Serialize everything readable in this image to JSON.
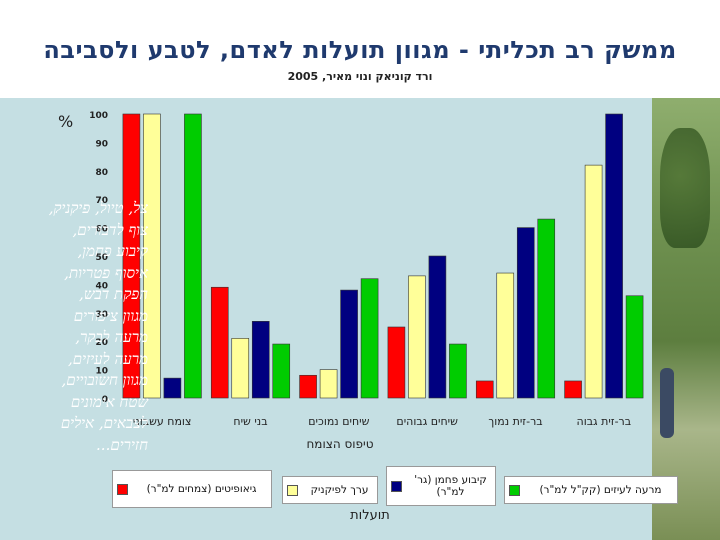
{
  "slide": {
    "title": "ממשק רב תכליתי - מגוון תועלות לאדם, לטבע ולסביבה",
    "subtitle": "ורד קוניאק ונוי מאיר, 2005",
    "percent_label": "%",
    "overlay_lines": [
      "צל, טיול, פיקניק,",
      "צוף לדבורים,",
      "קיבוע פחמן,",
      "איסוף פטריות,",
      "הפקת דבש,",
      "מגוון ציפורים",
      "מרעה לבקר,",
      "מרעה לעיזים,",
      "מגוון חשובויים,",
      "שטח אימונים לצבאים, אילים",
      "חזירים..."
    ]
  },
  "chart_data": {
    "type": "bar",
    "title": "",
    "xlabel": "טיפוס הצומח",
    "ylabel": "%",
    "ylim": [
      0,
      100
    ],
    "yticks": [
      0,
      10,
      20,
      30,
      40,
      50,
      60,
      70,
      80,
      90,
      100
    ],
    "categories": [
      "צומח עשבוני",
      "בני שיח",
      "שיחים נמוכים",
      "שיחים גבוהים",
      "בר-זית נמוך",
      "בר-זית גבוה"
    ],
    "series": [
      {
        "name": "גיאופיטים (צמחים למ\"ר)",
        "color": "#ff0000",
        "values": [
          100,
          39,
          8,
          25,
          6,
          6
        ]
      },
      {
        "name": "ערך לפיקניק",
        "color": "#ffff99",
        "values": [
          100,
          21,
          10,
          43,
          44,
          82
        ]
      },
      {
        "name": "קיבוע פחמן (גר' למ\"ר)",
        "color": "#000080",
        "values": [
          7,
          27,
          38,
          50,
          60,
          100
        ]
      },
      {
        "name": "מרעה לעיזים (קק\"ל למ\"ר)",
        "color": "#00cc00",
        "values": [
          100,
          19,
          42,
          19,
          63,
          36
        ]
      }
    ],
    "legend_title": "תועלות",
    "legend_position": "bottom"
  }
}
